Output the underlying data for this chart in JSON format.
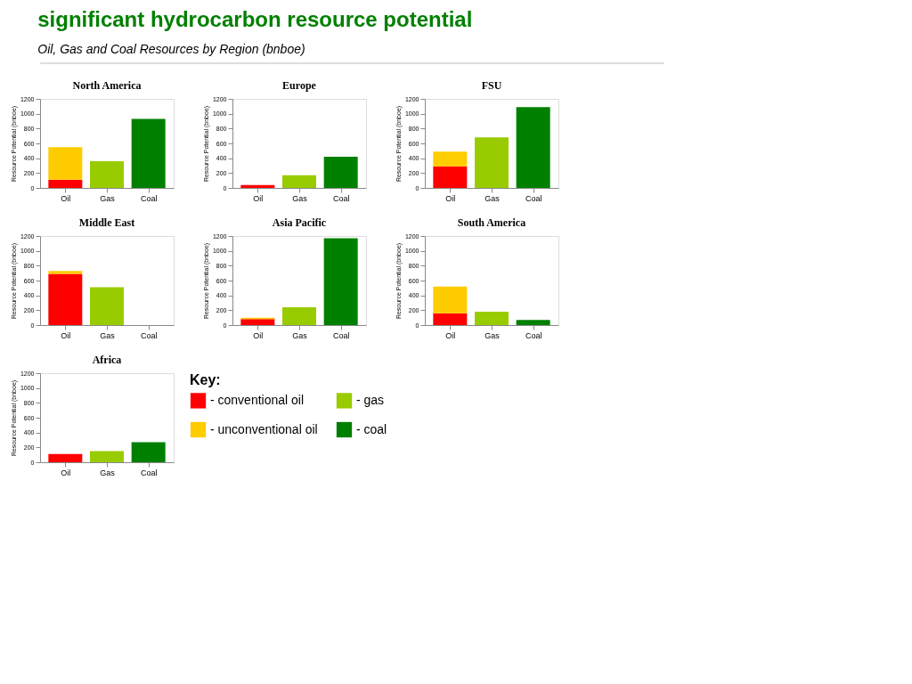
{
  "chart_data": [
    {
      "type": "other",
      "title": "significant hydrocarbon resource potential",
      "subtitle": "Oil, Gas and Coal Resources by Region (bnboe)"
    },
    {
      "type": "bar",
      "title": "North America",
      "ylabel": "Resource Potential (bnboe)",
      "categories": [
        "Oil",
        "Gas",
        "Coal"
      ],
      "stacked": true,
      "ylim": [
        0,
        1200
      ],
      "yticks": [
        0,
        200,
        400,
        600,
        800,
        1000,
        1200
      ],
      "grid": false,
      "legend": false,
      "series": [
        {
          "color": "#ff0000",
          "values": [
            110,
            null,
            null
          ]
        },
        {
          "color": "#ffcc00",
          "values": [
            440,
            null,
            null
          ]
        },
        {
          "color": "#99cc00",
          "values": [
            null,
            360,
            null
          ]
        },
        {
          "color": "#008000",
          "values": [
            null,
            null,
            930
          ]
        }
      ]
    },
    {
      "type": "bar",
      "title": "Europe",
      "ylabel": "Resource Potential (bnboe)",
      "categories": [
        "Oil",
        "Gas",
        "Coal"
      ],
      "stacked": true,
      "ylim": [
        0,
        1200
      ],
      "yticks": [
        0,
        200,
        400,
        600,
        800,
        1000,
        1200
      ],
      "grid": false,
      "legend": false,
      "series": [
        {
          "color": "#ff0000",
          "values": [
            40,
            null,
            null
          ]
        },
        {
          "color": "#ffcc00",
          "values": [
            null,
            null,
            null
          ]
        },
        {
          "color": "#99cc00",
          "values": [
            null,
            170,
            null
          ]
        },
        {
          "color": "#008000",
          "values": [
            null,
            null,
            420
          ]
        }
      ]
    },
    {
      "type": "bar",
      "title": "FSU",
      "ylabel": "Resource Potential (bnboe)",
      "categories": [
        "Oil",
        "Gas",
        "Coal"
      ],
      "stacked": true,
      "ylim": [
        0,
        1200
      ],
      "yticks": [
        0,
        200,
        400,
        600,
        800,
        1000,
        1200
      ],
      "grid": false,
      "legend": false,
      "series": [
        {
          "color": "#ff0000",
          "values": [
            290,
            null,
            null
          ]
        },
        {
          "color": "#ffcc00",
          "values": [
            200,
            null,
            null
          ]
        },
        {
          "color": "#99cc00",
          "values": [
            null,
            680,
            null
          ]
        },
        {
          "color": "#008000",
          "values": [
            null,
            null,
            1090
          ]
        }
      ]
    },
    {
      "type": "bar",
      "title": "Middle East",
      "ylabel": "Resource Potential (bnboe)",
      "categories": [
        "Oil",
        "Gas",
        "Coal"
      ],
      "stacked": true,
      "ylim": [
        0,
        1200
      ],
      "yticks": [
        0,
        200,
        400,
        600,
        800,
        1000,
        1200
      ],
      "grid": false,
      "legend": false,
      "series": [
        {
          "color": "#ff0000",
          "values": [
            690,
            null,
            null
          ]
        },
        {
          "color": "#ffcc00",
          "values": [
            40,
            null,
            null
          ]
        },
        {
          "color": "#99cc00",
          "values": [
            null,
            510,
            null
          ]
        },
        {
          "color": "#008000",
          "values": [
            null,
            null,
            null
          ]
        }
      ]
    },
    {
      "type": "bar",
      "title": "Asia Pacific",
      "ylabel": "Resource Potential (bnboe)",
      "categories": [
        "Oil",
        "Gas",
        "Coal"
      ],
      "stacked": true,
      "ylim": [
        0,
        1200
      ],
      "yticks": [
        0,
        200,
        400,
        600,
        800,
        1000,
        1200
      ],
      "grid": false,
      "legend": false,
      "series": [
        {
          "color": "#ff0000",
          "values": [
            80,
            null,
            null
          ]
        },
        {
          "color": "#ffcc00",
          "values": [
            20,
            null,
            null
          ]
        },
        {
          "color": "#99cc00",
          "values": [
            null,
            240,
            null
          ]
        },
        {
          "color": "#008000",
          "values": [
            null,
            null,
            1170
          ]
        }
      ]
    },
    {
      "type": "bar",
      "title": "South America",
      "ylabel": "Resource Potential (bnboe)",
      "categories": [
        "Oil",
        "Gas",
        "Coal"
      ],
      "stacked": true,
      "ylim": [
        0,
        1200
      ],
      "yticks": [
        0,
        200,
        400,
        600,
        800,
        1000,
        1200
      ],
      "grid": false,
      "legend": false,
      "series": [
        {
          "color": "#ff0000",
          "values": [
            160,
            null,
            null
          ]
        },
        {
          "color": "#ffcc00",
          "values": [
            360,
            null,
            null
          ]
        },
        {
          "color": "#99cc00",
          "values": [
            null,
            180,
            null
          ]
        },
        {
          "color": "#008000",
          "values": [
            null,
            null,
            70
          ]
        }
      ]
    },
    {
      "type": "bar",
      "title": "Africa",
      "ylabel": "Resource Potential (bnboe)",
      "categories": [
        "Oil",
        "Gas",
        "Coal"
      ],
      "stacked": true,
      "ylim": [
        0,
        1200
      ],
      "yticks": [
        0,
        200,
        400,
        600,
        800,
        1000,
        1200
      ],
      "grid": false,
      "legend": "right",
      "legend_title": "Key:",
      "series": [
        {
          "name": "- conventional oil",
          "color": "#ff0000",
          "values": [
            110,
            null,
            null
          ]
        },
        {
          "name": "- unconventional oil",
          "color": "#ffcc00",
          "values": [
            null,
            null,
            null
          ]
        },
        {
          "name": "- gas",
          "color": "#99cc00",
          "values": [
            null,
            150,
            null
          ]
        },
        {
          "name": "- coal",
          "color": "#008000",
          "values": [
            null,
            null,
            270
          ]
        }
      ]
    }
  ]
}
